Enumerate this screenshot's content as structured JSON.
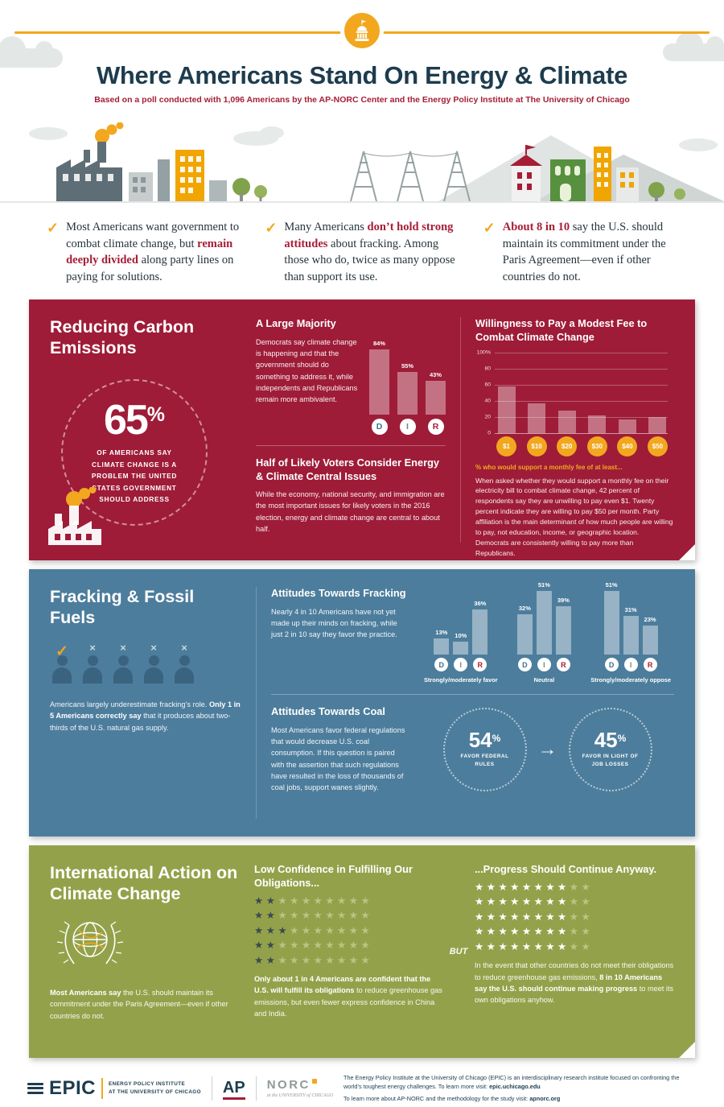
{
  "page": {
    "title": "Where Americans Stand On Energy & Climate",
    "subtitle": "Based on a poll conducted with 1,096 Americans by the AP-NORC Center and the Energy Policy Institute at The University of Chicago"
  },
  "findings": [
    {
      "pre": "Most Americans want government to combat climate change, but ",
      "bold": "remain deeply divided",
      "post": " along party lines on paying for solutions."
    },
    {
      "pre": "Many Americans ",
      "bold": "don’t hold strong attitudes",
      "post": " about fracking. Among those who do, twice as many oppose than support its use."
    },
    {
      "pre": "",
      "bold": "About 8 in 10",
      "post": " say the U.S. should maintain its commitment under the Paris Agreement—even if other countries do not."
    }
  ],
  "carbon": {
    "title": "Reducing Carbon Emissions",
    "stat": {
      "value": "65",
      "unit": "%",
      "caption": "OF AMERICANS SAY CLIMATE CHANGE IS A PROBLEM THE UNITED STATES GOVERNMENT SHOULD ADDRESS"
    },
    "majority_heading": "A Large Majority",
    "majority_text": "Democrats say climate change is happening and that the government should do something to address it, while independents and Republicans remain more ambivalent.",
    "voters_heading": "Half of Likely Voters Consider Energy & Climate Central Issues",
    "voters_text": "While the economy, national security, and immigration are the most important issues for likely voters in the 2016 election, energy and climate change are central to about half.",
    "fee_heading": "Willingness to Pay a Modest Fee to Combat Climate Change",
    "fee_caption": "% who would support a monthly fee of at least...",
    "fee_text": "When asked whether they would support a monthly fee on their electricity bill to combat climate change, 42 percent of respondents say they are unwilling to pay even $1. Twenty percent indicate they are willing to pay $50 per month. Party affiliation is the main determinant of how much people are willing to pay, not education, income, or geographic location. Democrats are consistently willing to pay more than Republicans."
  },
  "fracking": {
    "title": "Fracking & Fossil Fuels",
    "people": {
      "total": 5,
      "correct": 1
    },
    "intro_pre": "Americans largely underestimate fracking’s role. ",
    "intro_bold": "Only 1 in 5 Americans correctly say",
    "intro_post": " that it produces about two-thirds of the U.S. natural gas supply.",
    "attitudes_heading": "Attitudes Towards Fracking",
    "attitudes_text": "Nearly 4 in 10 Americans have not yet made up their minds on fracking, while just 2 in 10 say they favor the practice.",
    "coal_heading": "Attitudes Towards Coal",
    "coal_text": "Most Americans favor federal regulations that would decrease U.S. coal consumption. If this question is paired with the assertion that such regulations have resulted in the loss of thousands of coal jobs, support wanes slightly."
  },
  "international": {
    "title": "International Action on Climate Change",
    "intro_bold": "Most Americans say",
    "intro_post": " the U.S. should maintain its commitment under the Paris Agreement—even if other countries do not.",
    "low_heading": "Low Confidence in Fulfilling Our Obligations...",
    "but_label": "BUT",
    "progress_heading": "...Progress Should Continue Anyway.",
    "low_text_bold": "Only about 1 in 4 Americans are confident that the U.S. will fulfill its obligations",
    "low_text_post": " to reduce greenhouse gas emissions, but even fewer express confidence in China and India.",
    "progress_text_pre": "In the event that other countries do not meet their obligations to reduce greenhouse gas emissions, ",
    "progress_text_bold": "8 in 10 Americans say the U.S. should continue making progress",
    "progress_text_post": " to meet its own obligations anyhow."
  },
  "footer": {
    "epic_name": "EPIC",
    "epic_sub1": "ENERGY POLICY INSTITUTE",
    "epic_sub2": "AT THE UNIVERSITY OF CHICAGO",
    "ap_name": "AP",
    "norc_name": "NORC",
    "norc_sub": "at the UNIVERSITY of CHICAGO",
    "blurb_pre": "The Energy Policy Institute at the University of Chicago (EPIC) is an interdisciplinary research institute focused on confronting the world’s toughest energy challenges. To learn more visit: ",
    "blurb_link": "epic.uchicago.edu",
    "method_pre": "To learn more about AP-NORC and the methodology for the study visit: ",
    "method_link": "apnorc.org"
  },
  "colors": {
    "maroon": "#9e1c38",
    "blue": "#4d7d9c",
    "green": "#93a24a",
    "orange": "#f2a71e",
    "navy": "#1d3c4e",
    "red": "#a51e36",
    "party": {
      "D": "#3f6f94",
      "I": "#76848a",
      "R": "#a51e36"
    },
    "star_low_filled": "#3a4a52",
    "star_high_filled": "#ffffff",
    "star_empty": "#b9c584"
  },
  "chart_data": [
    {
      "id": "party_majority",
      "type": "bar",
      "title": "A Large Majority",
      "categories": [
        "Democrats",
        "Independents",
        "Republicans"
      ],
      "values": [
        84,
        55,
        43
      ],
      "unit": "%",
      "ylim": [
        0,
        100
      ]
    },
    {
      "id": "fee_support",
      "type": "bar",
      "title": "Willingness to Pay a Modest Fee to Combat Climate Change",
      "xlabel": "% who would support a monthly fee of at least...",
      "categories": [
        "$1",
        "$10",
        "$20",
        "$30",
        "$40",
        "$50"
      ],
      "values": [
        58,
        37,
        28,
        22,
        17,
        20
      ],
      "unit": "%",
      "ylim": [
        0,
        100
      ],
      "grid": true,
      "yticks": [
        {
          "label": "100%",
          "value": 100
        },
        {
          "label": "80",
          "value": 80
        },
        {
          "label": "60",
          "value": 60
        },
        {
          "label": "40",
          "value": 40
        },
        {
          "label": "20",
          "value": 20
        },
        {
          "label": "0",
          "value": 0
        }
      ]
    },
    {
      "id": "fracking_attitudes",
      "type": "bar",
      "title": "Attitudes Towards Fracking",
      "categories": [
        "Strongly/moderately favor",
        "Neutral",
        "Strongly/moderately oppose"
      ],
      "series": [
        {
          "name": "Democrats",
          "values": [
            13,
            32,
            51
          ]
        },
        {
          "name": "Independents",
          "values": [
            10,
            51,
            31
          ]
        },
        {
          "name": "Republicans",
          "values": [
            36,
            39,
            23
          ]
        }
      ],
      "unit": "%",
      "ylim": [
        0,
        60
      ]
    },
    {
      "id": "coal_support",
      "type": "pictogram",
      "title": "Attitudes Towards Coal",
      "circles": [
        {
          "value": "54",
          "unit": "%",
          "label": "FAVOR FEDERAL RULES"
        },
        {
          "value": "45",
          "unit": "%",
          "label": "FAVOR IN LIGHT OF JOB LOSSES"
        }
      ]
    },
    {
      "id": "confidence_stars",
      "type": "pictogram",
      "stars_per_row": 10,
      "low_confidence_rows": [
        2,
        2,
        3,
        2,
        2
      ],
      "progress_rows": [
        8,
        8,
        8,
        8,
        8
      ]
    }
  ]
}
